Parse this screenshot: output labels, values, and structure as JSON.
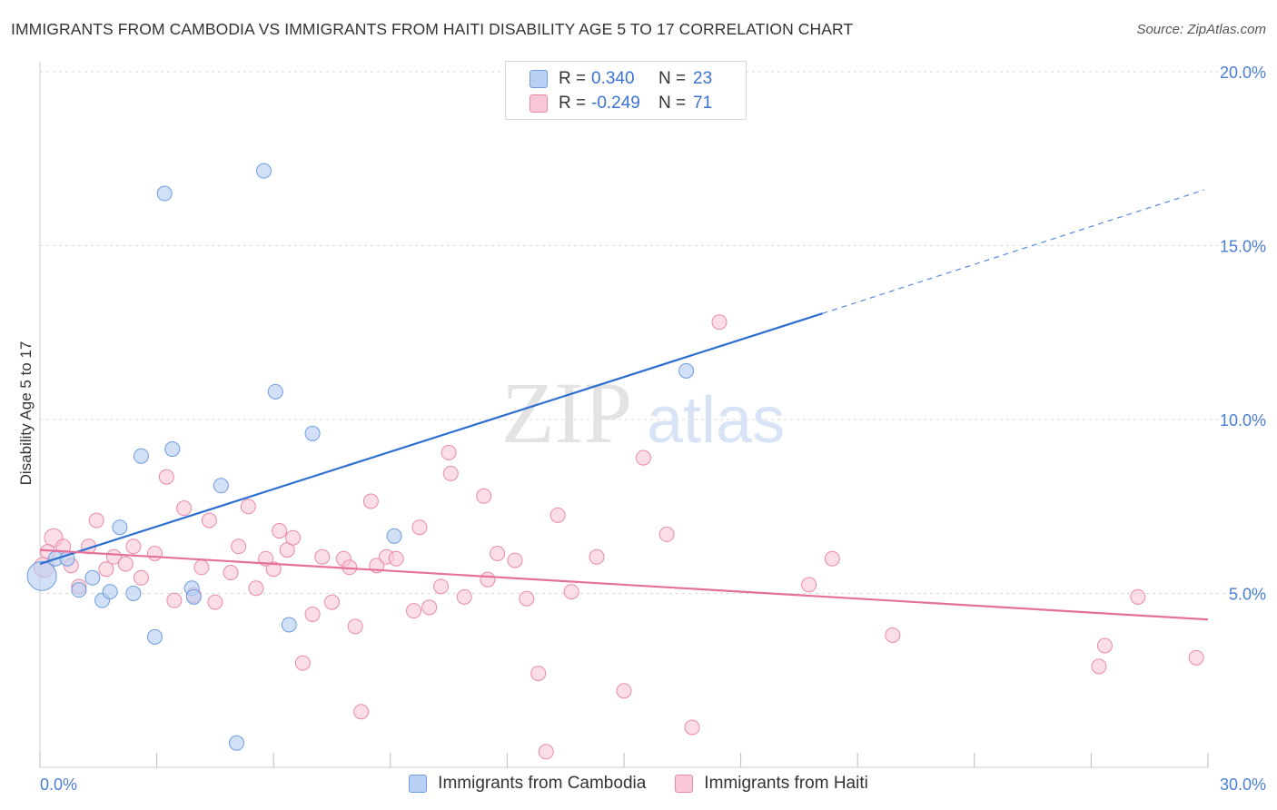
{
  "header": {
    "title": "IMMIGRANTS FROM CAMBODIA VS IMMIGRANTS FROM HAITI DISABILITY AGE 5 TO 17 CORRELATION CHART",
    "source": "Source: ZipAtlas.com"
  },
  "watermark": {
    "zip": "ZIP",
    "atlas": "atlas"
  },
  "legend": {
    "rows": [
      {
        "r_label": "R =",
        "r_value": "0.340",
        "n_label": "N =",
        "n_value": "23"
      },
      {
        "r_label": "R =",
        "r_value": "-0.249",
        "n_label": "N =",
        "n_value": "71"
      }
    ]
  },
  "bottom_legend": {
    "cambodia": "Immigrants from Cambodia",
    "haiti": "Immigrants from Haiti"
  },
  "colors": {
    "cambodia_fill": "#b8d0f3",
    "cambodia_stroke": "#6f9de0",
    "cambodia_line": "#2d6fd1",
    "haiti_fill": "#f9c6d6",
    "haiti_stroke": "#e98aa9",
    "haiti_line": "#e5709a",
    "grid": "#d9d9d9",
    "tick_text": "#4a7fd4"
  },
  "chart_data": {
    "type": "scatter",
    "title": "IMMIGRANTS FROM CAMBODIA VS IMMIGRANTS FROM HAITI DISABILITY AGE 5 TO 17 CORRELATION CHART",
    "xlabel": "",
    "ylabel": "Disability Age 5 to 17",
    "xlim": [
      0,
      30
    ],
    "ylim": [
      0,
      20
    ],
    "x_tick_labels": [
      "0.0%",
      "30.0%"
    ],
    "y_ticks": [
      5,
      10,
      15,
      20
    ],
    "y_tick_labels": [
      "5.0%",
      "10.0%",
      "15.0%",
      "20.0%"
    ],
    "grid": true,
    "series": [
      {
        "name": "Immigrants from Cambodia",
        "R": 0.34,
        "N": 23,
        "points": [
          [
            0.05,
            5.5
          ],
          [
            0.4,
            6.0
          ],
          [
            0.7,
            6.0
          ],
          [
            1.0,
            5.1
          ],
          [
            1.35,
            5.45
          ],
          [
            1.6,
            4.8
          ],
          [
            1.8,
            5.05
          ],
          [
            2.05,
            6.9
          ],
          [
            2.4,
            5.0
          ],
          [
            2.6,
            8.95
          ],
          [
            2.95,
            3.75
          ],
          [
            3.2,
            16.5
          ],
          [
            3.4,
            9.15
          ],
          [
            3.9,
            5.15
          ],
          [
            3.95,
            4.9
          ],
          [
            4.65,
            8.1
          ],
          [
            5.05,
            0.7
          ],
          [
            5.75,
            17.15
          ],
          [
            6.05,
            10.8
          ],
          [
            6.4,
            4.1
          ],
          [
            7.0,
            9.6
          ],
          [
            9.1,
            6.65
          ],
          [
            16.6,
            11.4
          ]
        ],
        "trend": {
          "x0": 0,
          "y0": 5.85,
          "x1": 20.1,
          "y1": 13.05,
          "dashed_to_x": 29.9,
          "dashed_to_y": 16.6
        }
      },
      {
        "name": "Immigrants from Haiti",
        "R": -0.249,
        "N": 71,
        "points": [
          [
            0.1,
            5.75
          ],
          [
            0.35,
            6.6
          ],
          [
            0.6,
            6.35
          ],
          [
            0.8,
            5.8
          ],
          [
            1.0,
            5.2
          ],
          [
            1.25,
            6.35
          ],
          [
            1.45,
            7.1
          ],
          [
            1.7,
            5.7
          ],
          [
            1.9,
            6.05
          ],
          [
            2.2,
            5.85
          ],
          [
            2.4,
            6.35
          ],
          [
            2.6,
            5.45
          ],
          [
            2.95,
            6.15
          ],
          [
            3.25,
            8.35
          ],
          [
            3.45,
            4.8
          ],
          [
            3.7,
            7.45
          ],
          [
            3.95,
            4.95
          ],
          [
            4.15,
            5.75
          ],
          [
            4.35,
            7.1
          ],
          [
            4.5,
            4.75
          ],
          [
            4.9,
            5.6
          ],
          [
            5.1,
            6.35
          ],
          [
            5.35,
            7.5
          ],
          [
            5.55,
            5.15
          ],
          [
            5.8,
            6.0
          ],
          [
            6.0,
            5.7
          ],
          [
            6.15,
            6.8
          ],
          [
            6.35,
            6.25
          ],
          [
            6.5,
            6.6
          ],
          [
            6.75,
            3.0
          ],
          [
            7.0,
            4.4
          ],
          [
            7.25,
            6.05
          ],
          [
            7.5,
            4.75
          ],
          [
            7.8,
            6.0
          ],
          [
            7.95,
            5.75
          ],
          [
            8.1,
            4.05
          ],
          [
            8.25,
            1.6
          ],
          [
            8.5,
            7.65
          ],
          [
            8.65,
            5.8
          ],
          [
            8.9,
            6.05
          ],
          [
            9.15,
            6.0
          ],
          [
            9.6,
            4.5
          ],
          [
            9.75,
            6.9
          ],
          [
            10.0,
            4.6
          ],
          [
            10.3,
            5.2
          ],
          [
            10.5,
            9.05
          ],
          [
            10.55,
            8.45
          ],
          [
            10.9,
            4.9
          ],
          [
            11.4,
            7.8
          ],
          [
            11.5,
            5.4
          ],
          [
            11.75,
            6.15
          ],
          [
            12.2,
            5.95
          ],
          [
            12.5,
            4.85
          ],
          [
            12.8,
            2.7
          ],
          [
            13.0,
            0.45
          ],
          [
            13.3,
            7.25
          ],
          [
            13.65,
            5.05
          ],
          [
            14.3,
            6.05
          ],
          [
            15.0,
            2.2
          ],
          [
            15.5,
            8.9
          ],
          [
            16.1,
            6.7
          ],
          [
            16.75,
            1.15
          ],
          [
            17.45,
            12.8
          ],
          [
            19.75,
            5.25
          ],
          [
            20.35,
            6.0
          ],
          [
            21.9,
            3.8
          ],
          [
            27.2,
            2.9
          ],
          [
            27.35,
            3.5
          ],
          [
            28.2,
            4.9
          ],
          [
            29.7,
            3.15
          ],
          [
            0.2,
            6.2
          ]
        ],
        "trend": {
          "x0": 0,
          "y0": 6.25,
          "x1": 30,
          "y1": 4.25
        }
      }
    ]
  }
}
